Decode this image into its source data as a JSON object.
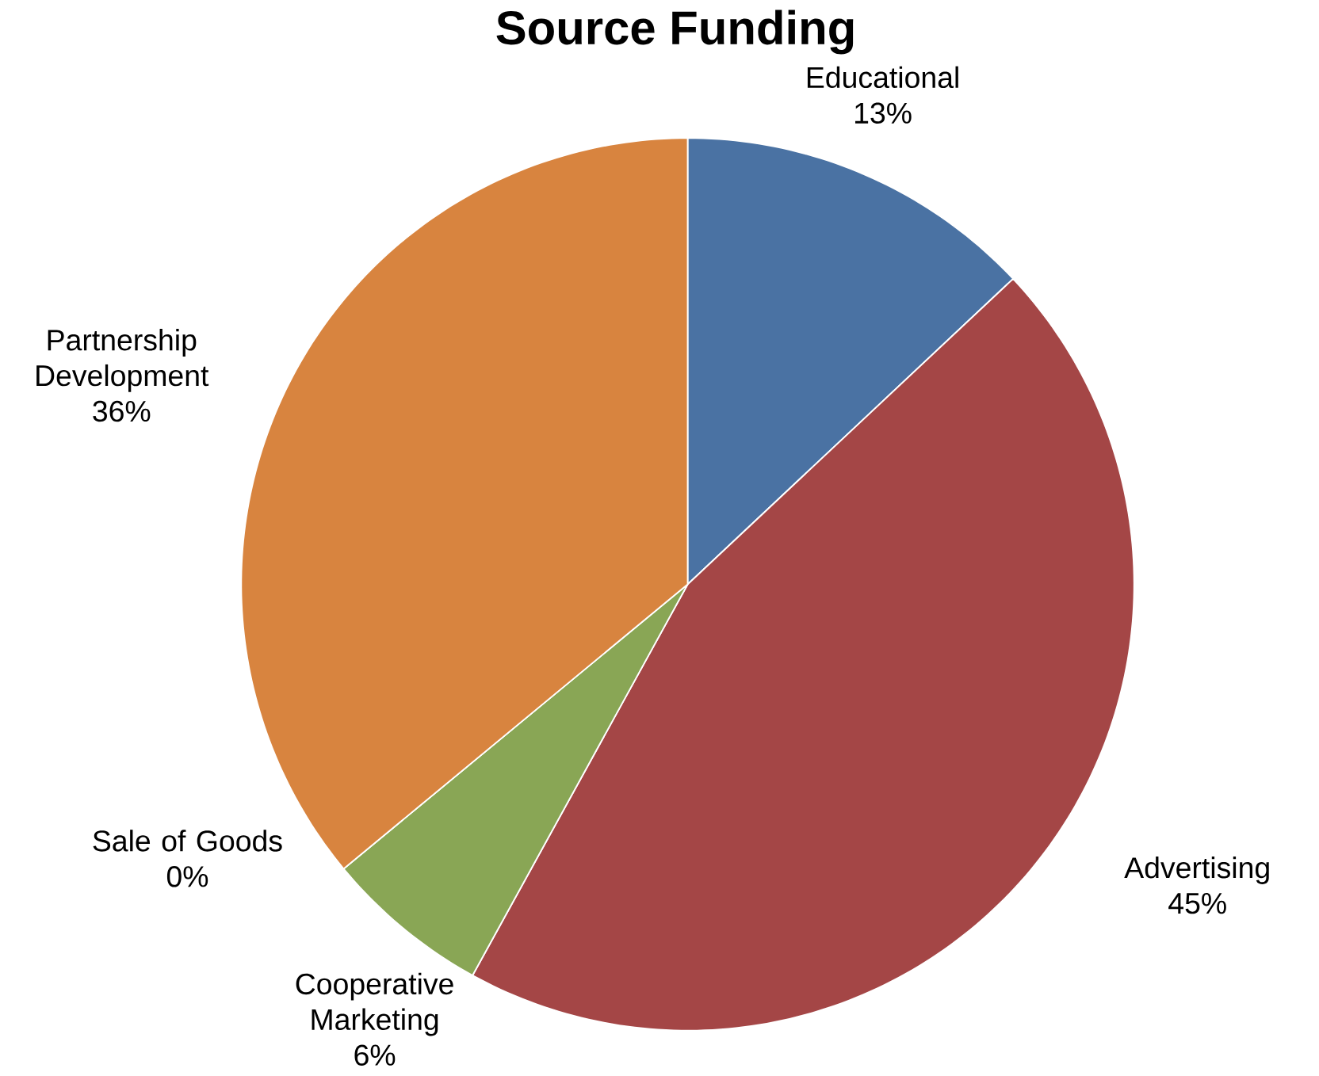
{
  "chart_data": {
    "type": "pie",
    "title": "Source Funding",
    "categories": [
      "Educational",
      "Advertising",
      "Cooperative Marketing",
      "Sale of Goods",
      "Partnership Development"
    ],
    "values": [
      13,
      45,
      6,
      0,
      36
    ],
    "value_labels": [
      "13%",
      "45%",
      "6%",
      "0%",
      "36%"
    ],
    "colors": [
      "#4a72a3",
      "#a44646",
      "#89a655",
      "#3d9fc0",
      "#d8843f"
    ]
  }
}
